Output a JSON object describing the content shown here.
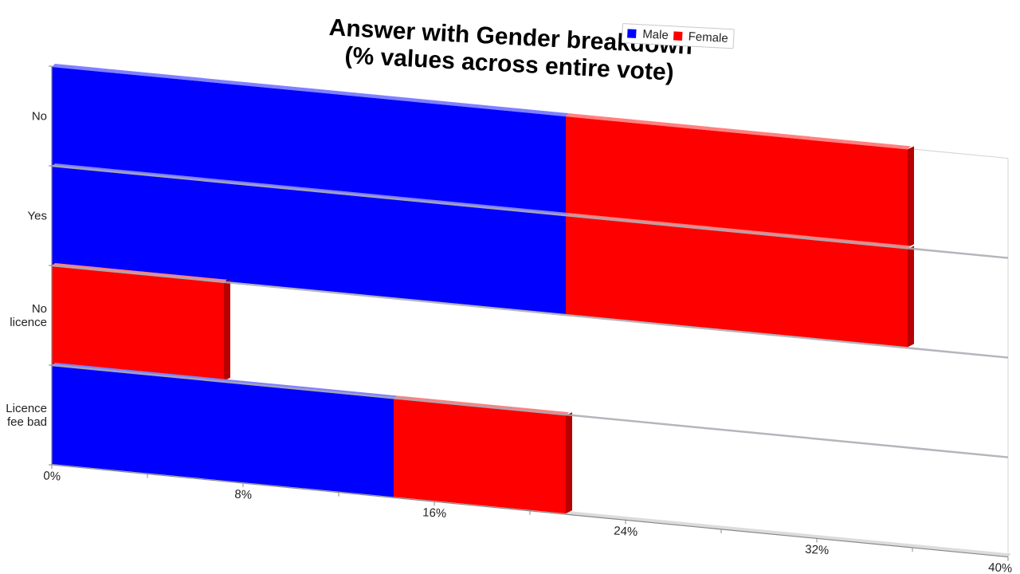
{
  "chart_data": {
    "type": "bar",
    "orientation": "horizontal",
    "stacked": true,
    "title_lines": [
      "Answer with Gender breakdown",
      "(% values across entire vote)"
    ],
    "categories": [
      "No",
      "Yes",
      "No licence",
      "Licence fee bad"
    ],
    "category_label_lines": [
      [
        "No"
      ],
      [
        "Yes"
      ],
      [
        "No",
        "licence"
      ],
      [
        "Licence",
        "fee bad"
      ]
    ],
    "series": [
      {
        "name": "Male",
        "color": "#0000ff",
        "values": [
          21.5,
          21.5,
          0,
          14.3
        ]
      },
      {
        "name": "Female",
        "color": "#ff0000",
        "values": [
          14.3,
          14.3,
          7.2,
          7.2
        ]
      }
    ],
    "x_ticks": [
      "0%",
      "8%",
      "16%",
      "24%",
      "32%",
      "40%"
    ],
    "xlim": [
      0,
      40
    ],
    "legend_position": "top-right",
    "grid": false,
    "perspective_3d": true
  }
}
